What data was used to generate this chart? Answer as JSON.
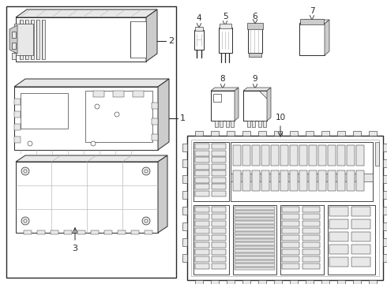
{
  "bg_color": "#ffffff",
  "line_color": "#2a2a2a",
  "gray1": "#cccccc",
  "gray2": "#e8e8e8",
  "gray3": "#aaaaaa",
  "fig_w": 4.9,
  "fig_h": 3.6,
  "dpi": 100
}
